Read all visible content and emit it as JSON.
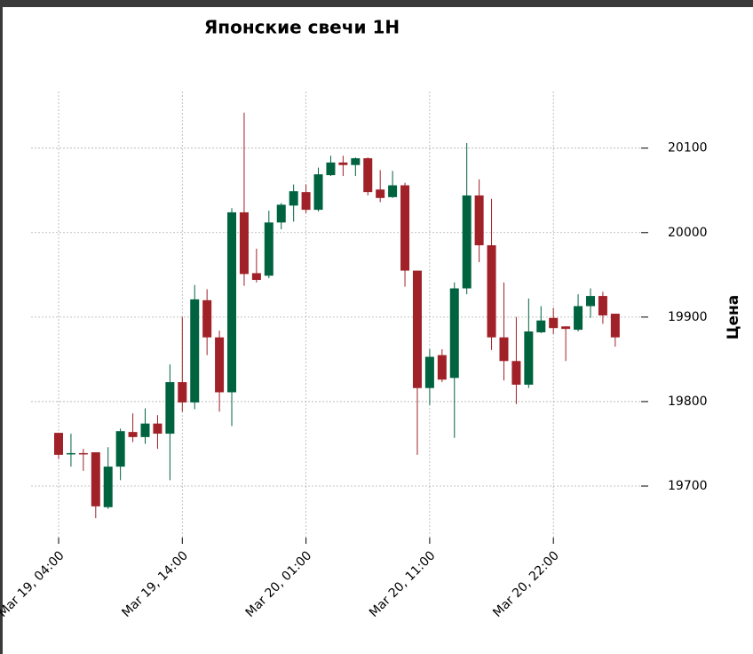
{
  "chart_data": {
    "type": "candlestick",
    "title": "Японские свечи 1H",
    "y_label": "Цена",
    "categories": [
      "Mar 19, 04:00",
      null,
      null,
      null,
      null,
      null,
      null,
      null,
      null,
      null,
      "Mar 19, 14:00",
      null,
      null,
      null,
      null,
      null,
      null,
      null,
      null,
      null,
      "Mar 20, 01:00",
      null,
      null,
      null,
      null,
      null,
      null,
      null,
      null,
      null,
      "Mar 20, 11:00",
      null,
      null,
      null,
      null,
      null,
      null,
      null,
      null,
      null,
      "Mar 20, 22:00",
      null,
      null,
      null,
      null,
      null
    ],
    "open": [
      19763,
      19738,
      19739,
      19740,
      19675,
      19723,
      19764,
      19758,
      19774,
      19762,
      19823,
      19799,
      19920,
      19876,
      19811,
      20024,
      19952,
      19949,
      20012,
      20032,
      20048,
      20027,
      20068,
      20083,
      20080,
      20088,
      20051,
      20042,
      20056,
      19955,
      19816,
      19855,
      19828,
      19934,
      20044,
      19985,
      19876,
      19848,
      19820,
      19882,
      19899,
      19889,
      19885,
      19913,
      19925,
      19904
    ],
    "high": [
      19763,
      19762,
      19744,
      19740,
      19746,
      19768,
      19786,
      19792,
      19784,
      19844,
      19900,
      19938,
      19933,
      19884,
      20029,
      20142,
      19981,
      20026,
      20035,
      20057,
      20057,
      20077,
      20091,
      20091,
      20089,
      20089,
      20074,
      20073,
      20059,
      19955,
      19862,
      19862,
      19941,
      20106,
      20063,
      20040,
      19941,
      19900,
      19922,
      19913,
      19911,
      19889,
      19927,
      19934,
      19930,
      19904
    ],
    "low": [
      19732,
      19723,
      19718,
      19662,
      19673,
      19707,
      19752,
      19750,
      19744,
      19707,
      19788,
      19791,
      19855,
      19788,
      19771,
      19937,
      19941,
      19946,
      20004,
      20013,
      20023,
      20025,
      20067,
      20067,
      20067,
      20044,
      20036,
      20041,
      19936,
      19737,
      19796,
      19823,
      19757,
      19927,
      19965,
      19861,
      19825,
      19797,
      19816,
      19881,
      19880,
      19848,
      19883,
      19899,
      19892,
      19865
    ],
    "close": [
      19737,
      19739,
      19738,
      19676,
      19723,
      19765,
      19758,
      19774,
      19762,
      19823,
      19799,
      19921,
      19876,
      19811,
      20024,
      19951,
      19944,
      20012,
      20033,
      20049,
      20027,
      20069,
      20083,
      20080,
      20088,
      20048,
      20041,
      20056,
      19955,
      19816,
      19853,
      19826,
      19934,
      20044,
      19985,
      19876,
      19848,
      19820,
      19883,
      19896,
      19887,
      19886,
      19913,
      19925,
      19902,
      19876
    ],
    "up_color": "#006340",
    "down_color": "#a02128",
    "ylim": [
      19639,
      20167
    ],
    "yticks": [
      19700,
      19800,
      19900,
      20000,
      20100
    ],
    "grid": true
  }
}
